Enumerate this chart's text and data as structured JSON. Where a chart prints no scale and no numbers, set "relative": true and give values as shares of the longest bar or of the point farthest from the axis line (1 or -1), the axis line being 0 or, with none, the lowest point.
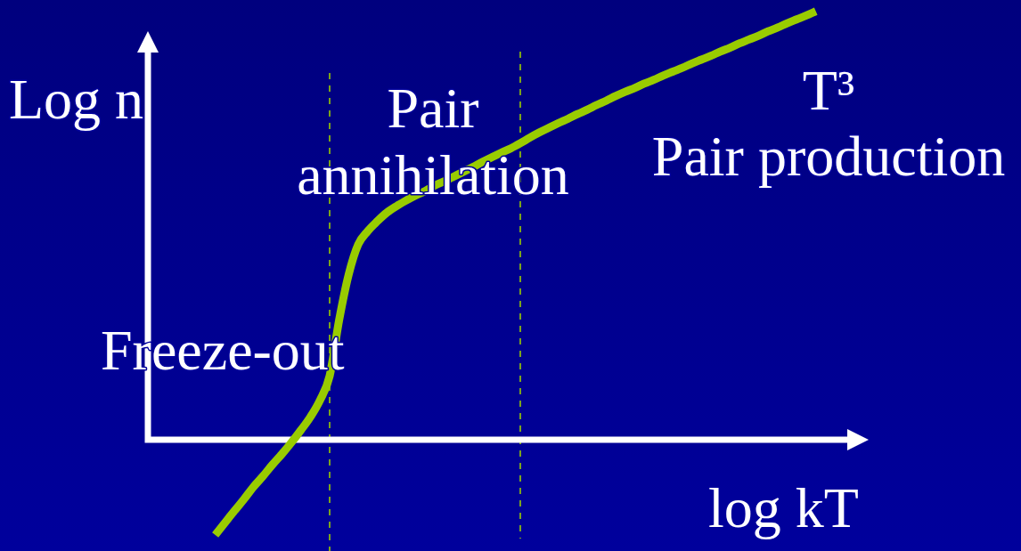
{
  "chart_data": {
    "type": "line",
    "relative": true,
    "xlabel": "log kT",
    "ylabel": "Log n",
    "annotations": [
      "Pair\nannihilation",
      "T³\nPair production",
      "Freeze-out"
    ],
    "categories": [
      null,
      null,
      null,
      null,
      null,
      null,
      null,
      null,
      null,
      null,
      null,
      null,
      null,
      null,
      null,
      null,
      null,
      null,
      null,
      null,
      null,
      null,
      null,
      null,
      null,
      null,
      null,
      null,
      null,
      null,
      null,
      null,
      null,
      null,
      null,
      null,
      null,
      null,
      null,
      null,
      null,
      null,
      null,
      null,
      null,
      null,
      null,
      null,
      null,
      null,
      null,
      null,
      null,
      null,
      null,
      null,
      null,
      null,
      null,
      null,
      null,
      null,
      null,
      null
    ],
    "values": [
      -0.222,
      -0.194,
      -0.166,
      -0.139,
      -0.11,
      -0.085,
      -0.058,
      -0.033,
      -0.006,
      0.023,
      0.054,
      0.093,
      0.149,
      0.28,
      0.386,
      0.456,
      0.487,
      0.51,
      0.53,
      0.545,
      0.558,
      0.57,
      0.58,
      0.593,
      0.603,
      0.614,
      0.625,
      0.636,
      0.648,
      0.659,
      0.67,
      0.68,
      0.692,
      0.705,
      0.717,
      0.728,
      0.739,
      0.749,
      0.76,
      0.77,
      0.781,
      0.791,
      0.802,
      0.812,
      0.821,
      0.831,
      0.84,
      0.85,
      0.859,
      0.868,
      0.878,
      0.887,
      0.896,
      0.906,
      0.915,
      0.925,
      0.934,
      0.943,
      0.953,
      0.962,
      0.972,
      0.981,
      0.99,
      1
    ],
    "color": "#99cc00",
    "marker": "none",
    "line_style": "solid"
  }
}
